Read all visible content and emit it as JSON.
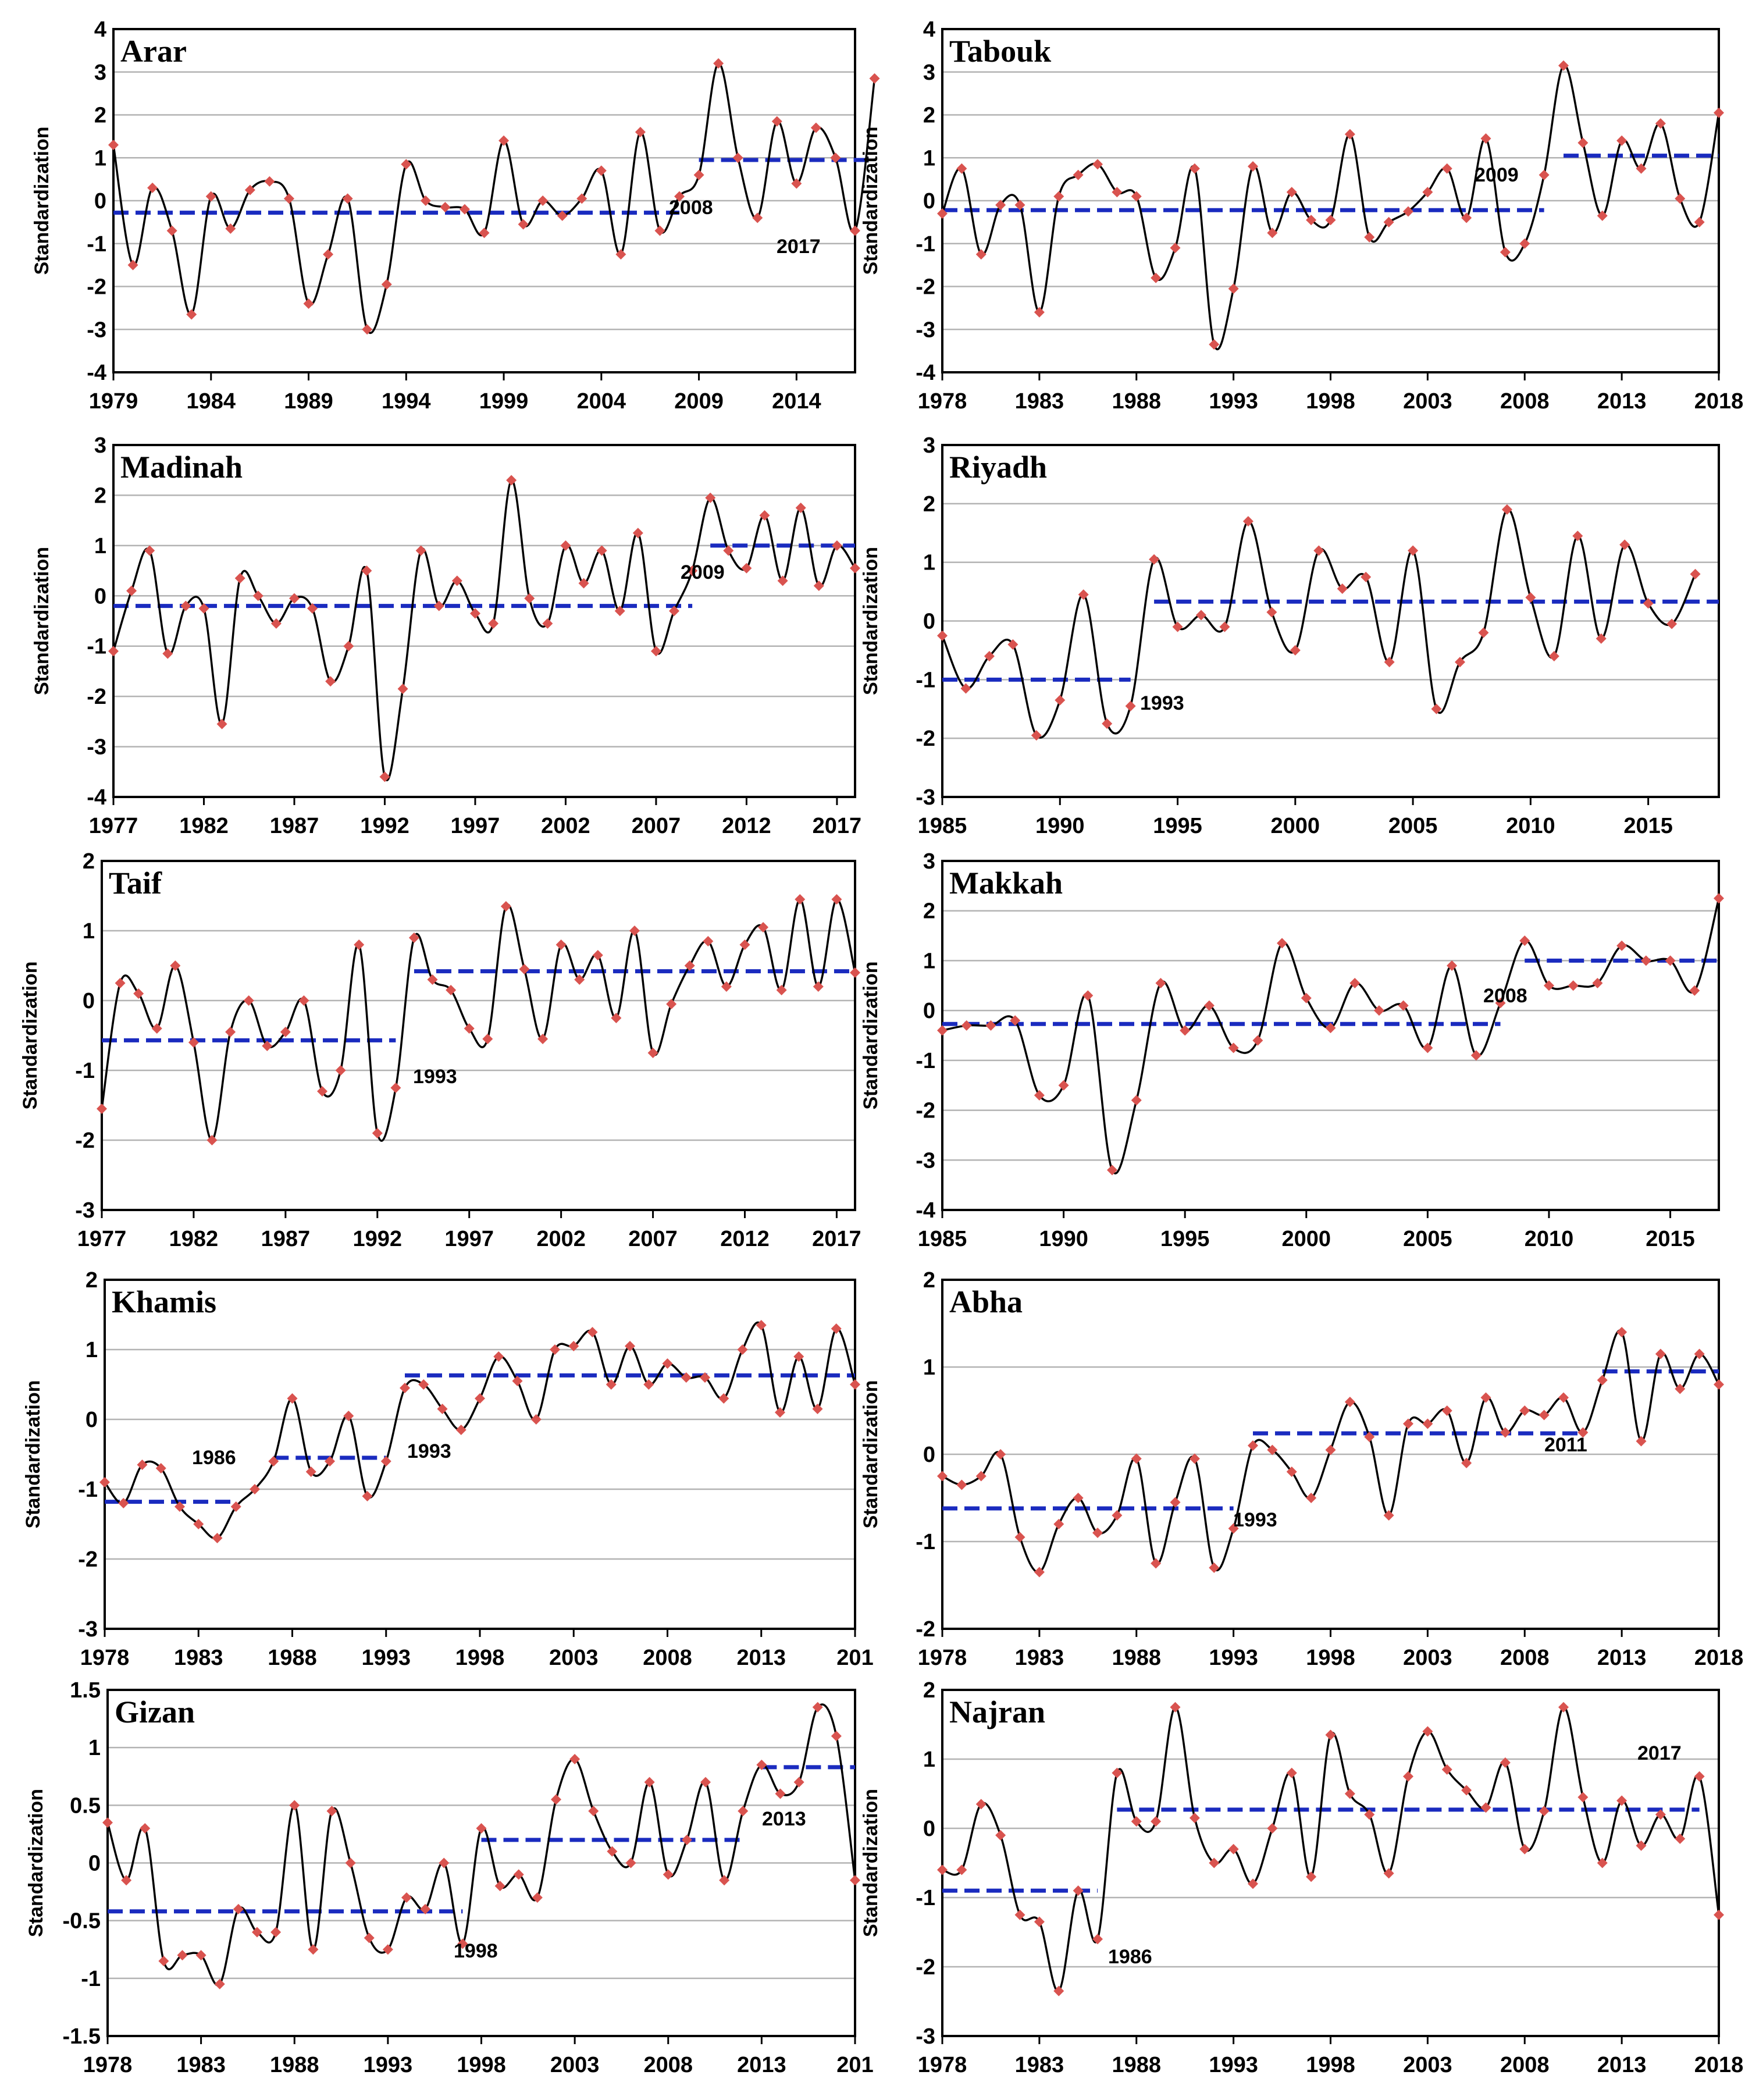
{
  "figure": {
    "y_axis_label": "Standardization",
    "colors": {
      "series": "#000000",
      "marker": "#d9534f",
      "change_line": "#1a2bbf",
      "grid": "#b3b3b3",
      "axis": "#000000"
    }
  },
  "chart_data": [
    {
      "type": "line",
      "title": "Arar",
      "ylabel": "Standardization",
      "start_year": 1979,
      "ylim": [
        -4,
        4
      ],
      "ytick_step": 1,
      "xticks": [
        "1979",
        "1984",
        "1989",
        "1994",
        "1999",
        "2004",
        "2009",
        "2014"
      ],
      "values": [
        1.3,
        -1.5,
        0.3,
        -0.7,
        -2.65,
        0.1,
        -0.65,
        0.25,
        0.45,
        0.05,
        -2.4,
        -1.25,
        0.05,
        -3.0,
        -1.95,
        0.85,
        0.0,
        -0.15,
        -0.2,
        -0.75,
        1.4,
        -0.55,
        0.0,
        -0.35,
        0.05,
        0.7,
        -1.25,
        1.6,
        -0.7,
        0.1,
        0.6,
        3.2,
        1.0,
        -0.4,
        1.85,
        0.4,
        1.7,
        1.0,
        -0.7,
        2.85
      ],
      "segments": [
        {
          "from": 1979,
          "to": 2008,
          "mean": -0.28
        },
        {
          "from": 2009,
          "to": 2018,
          "mean": 0.95
        }
      ],
      "annotations": [
        "2008",
        "2017"
      ]
    },
    {
      "type": "line",
      "title": "Tabouk",
      "ylabel": "Standardization",
      "start_year": 1978,
      "ylim": [
        -4,
        4
      ],
      "ytick_step": 1,
      "xticks": [
        "1978",
        "1983",
        "1988",
        "1993",
        "1998",
        "2003",
        "2008",
        "2013",
        "2018"
      ],
      "values": [
        -0.3,
        0.75,
        -1.25,
        -0.1,
        -0.1,
        -2.6,
        0.1,
        0.6,
        0.85,
        0.2,
        0.1,
        -1.8,
        -1.1,
        0.75,
        -3.35,
        -2.05,
        0.8,
        -0.75,
        0.2,
        -0.45,
        -0.45,
        1.55,
        -0.85,
        -0.5,
        -0.25,
        0.2,
        0.75,
        -0.4,
        1.45,
        -1.2,
        -1.0,
        0.6,
        3.15,
        1.35,
        -0.35,
        1.4,
        0.75,
        1.8,
        0.05,
        -0.5,
        2.05
      ],
      "segments": [
        {
          "from": 1978,
          "to": 2009,
          "mean": -0.22
        },
        {
          "from": 2010,
          "to": 2018,
          "mean": 1.05
        }
      ],
      "annotations": [
        "2009"
      ]
    },
    {
      "type": "line",
      "title": "Madinah",
      "ylabel": "Standardization",
      "start_year": 1977,
      "ylim": [
        -4,
        3
      ],
      "ytick_step": 1,
      "xticks": [
        "1977",
        "1982",
        "1987",
        "1992",
        "1997",
        "2002",
        "2007",
        "2012",
        "2017"
      ],
      "values": [
        -1.1,
        0.1,
        0.9,
        -1.15,
        -0.2,
        -0.25,
        -2.55,
        0.35,
        0.0,
        -0.55,
        -0.05,
        -0.25,
        -1.7,
        -1.0,
        0.5,
        -3.6,
        -1.85,
        0.9,
        -0.2,
        0.3,
        -0.35,
        -0.55,
        2.3,
        -0.05,
        -0.55,
        1.0,
        0.25,
        0.9,
        -0.3,
        1.25,
        -1.1,
        -0.3,
        0.5,
        1.95,
        0.9,
        0.55,
        1.6,
        0.3,
        1.75,
        0.2,
        1.0,
        0.55
      ],
      "segments": [
        {
          "from": 1977,
          "to": 2009,
          "mean": -0.2
        },
        {
          "from": 2010,
          "to": 2018,
          "mean": 1.0
        }
      ],
      "annotations": [
        "2009"
      ]
    },
    {
      "type": "line",
      "title": "Riyadh",
      "ylabel": "Standardization",
      "start_year": 1985,
      "ylim": [
        -3,
        3
      ],
      "ytick_step": 1,
      "xticks": [
        "1985",
        "1990",
        "1995",
        "2000",
        "2005",
        "2010",
        "2015"
      ],
      "values": [
        -0.25,
        -1.15,
        -0.6,
        -0.4,
        -1.95,
        -1.35,
        0.45,
        -1.75,
        -1.45,
        1.05,
        -0.1,
        0.1,
        -0.1,
        1.7,
        0.15,
        -0.5,
        1.2,
        0.55,
        0.75,
        -0.7,
        1.2,
        -1.5,
        -0.7,
        -0.2,
        1.9,
        0.4,
        -0.6,
        1.45,
        -0.3,
        1.3,
        0.3,
        -0.05,
        0.8
      ],
      "segments": [
        {
          "from": 1985,
          "to": 1993,
          "mean": -1.0
        },
        {
          "from": 1994,
          "to": 2018,
          "mean": 0.33
        }
      ],
      "annotations": [
        "1993"
      ]
    },
    {
      "type": "line",
      "title": "Taif",
      "ylabel": "Standardization",
      "start_year": 1977,
      "ylim": [
        -3,
        2
      ],
      "ytick_step": 1,
      "xticks": [
        "1977",
        "1982",
        "1987",
        "1992",
        "1997",
        "2002",
        "2007",
        "2012",
        "2017"
      ],
      "values": [
        -1.55,
        0.25,
        0.1,
        -0.4,
        0.5,
        -0.6,
        -2.0,
        -0.45,
        0.0,
        -0.65,
        -0.45,
        0.0,
        -1.3,
        -1.0,
        0.8,
        -1.9,
        -1.25,
        0.9,
        0.3,
        0.15,
        -0.4,
        -0.55,
        1.35,
        0.45,
        -0.55,
        0.8,
        0.3,
        0.65,
        -0.25,
        1.0,
        -0.75,
        -0.05,
        0.5,
        0.85,
        0.2,
        0.8,
        1.05,
        0.15,
        1.45,
        0.2,
        1.45,
        0.4
      ],
      "segments": [
        {
          "from": 1977,
          "to": 1993,
          "mean": -0.57
        },
        {
          "from": 1994,
          "to": 2018,
          "mean": 0.42
        }
      ],
      "annotations": [
        "1993"
      ]
    },
    {
      "type": "line",
      "title": "Makkah",
      "ylabel": "Standardization",
      "start_year": 1985,
      "ylim": [
        -4,
        3
      ],
      "ytick_step": 1,
      "xticks": [
        "1985",
        "1990",
        "1995",
        "2000",
        "2005",
        "2010",
        "2015"
      ],
      "values": [
        -0.4,
        -0.3,
        -0.3,
        -0.2,
        -1.7,
        -1.5,
        0.3,
        -3.2,
        -1.8,
        0.55,
        -0.4,
        0.1,
        -0.75,
        -0.6,
        1.35,
        0.25,
        -0.35,
        0.55,
        0.0,
        0.1,
        -0.75,
        0.9,
        -0.9,
        0.15,
        1.4,
        0.5,
        0.5,
        0.55,
        1.3,
        1.0,
        1.0,
        0.4,
        2.25
      ],
      "segments": [
        {
          "from": 1985,
          "to": 2008,
          "mean": -0.27
        },
        {
          "from": 2009,
          "to": 2017,
          "mean": 1.0
        }
      ],
      "annotations": [
        "2008"
      ]
    },
    {
      "type": "line",
      "title": "Khamis",
      "ylabel": "Standardization",
      "start_year": 1978,
      "ylim": [
        -3,
        2
      ],
      "ytick_step": 1,
      "xticks": [
        "1978",
        "1983",
        "1988",
        "1993",
        "1998",
        "2003",
        "2008",
        "2013",
        "201"
      ],
      "values": [
        -0.9,
        -1.2,
        -0.65,
        -0.7,
        -1.25,
        -1.5,
        -1.7,
        -1.25,
        -1.0,
        -0.6,
        0.3,
        -0.75,
        -0.6,
        0.05,
        -1.1,
        -0.6,
        0.45,
        0.5,
        0.15,
        -0.15,
        0.3,
        0.9,
        0.55,
        0.0,
        1.0,
        1.05,
        1.25,
        0.5,
        1.05,
        0.5,
        0.8,
        0.6,
        0.6,
        0.3,
        1.0,
        1.35,
        0.1,
        0.9,
        0.15,
        1.3,
        0.5
      ],
      "segments": [
        {
          "from": 1978,
          "to": 1985,
          "mean": -1.18
        },
        {
          "from": 1987,
          "to": 1993,
          "mean": -0.55
        },
        {
          "from": 1994,
          "to": 2018,
          "mean": 0.63
        }
      ],
      "annotations": [
        "1986",
        "1993"
      ]
    },
    {
      "type": "line",
      "title": "Abha",
      "ylabel": "Standardization",
      "start_year": 1978,
      "ylim": [
        -2,
        2
      ],
      "ytick_step": 1,
      "xticks": [
        "1978",
        "1983",
        "1988",
        "1993",
        "1998",
        "2003",
        "2008",
        "2013",
        "2018"
      ],
      "values": [
        -0.25,
        -0.35,
        -0.25,
        0.0,
        -0.95,
        -1.35,
        -0.8,
        -0.5,
        -0.9,
        -0.7,
        -0.05,
        -1.25,
        -0.55,
        -0.05,
        -1.3,
        -0.85,
        0.1,
        0.05,
        -0.2,
        -0.5,
        0.05,
        0.6,
        0.2,
        -0.7,
        0.35,
        0.35,
        0.5,
        -0.1,
        0.65,
        0.25,
        0.5,
        0.45,
        0.65,
        0.25,
        0.85,
        1.4,
        0.15,
        1.15,
        0.75,
        1.15,
        0.8
      ],
      "segments": [
        {
          "from": 1978,
          "to": 1993,
          "mean": -0.62
        },
        {
          "from": 1994,
          "to": 2011,
          "mean": 0.24
        },
        {
          "from": 2012,
          "to": 2018,
          "mean": 0.95
        }
      ],
      "annotations": [
        "1993",
        "2011"
      ]
    },
    {
      "type": "line",
      "title": "Gizan",
      "ylabel": "Standardization",
      "start_year": 1978,
      "ylim": [
        -1.5,
        1.5
      ],
      "ytick_step": 0.5,
      "xticks": [
        "1978",
        "1983",
        "1988",
        "1993",
        "1998",
        "2003",
        "2008",
        "2013",
        "201"
      ],
      "values": [
        0.35,
        -0.15,
        0.3,
        -0.85,
        -0.8,
        -0.8,
        -1.05,
        -0.4,
        -0.6,
        -0.6,
        0.5,
        -0.75,
        0.45,
        0.0,
        -0.65,
        -0.75,
        -0.3,
        -0.4,
        0.0,
        -0.7,
        0.3,
        -0.2,
        -0.1,
        -0.3,
        0.55,
        0.9,
        0.45,
        0.1,
        0.0,
        0.7,
        -0.1,
        0.2,
        0.7,
        -0.15,
        0.45,
        0.85,
        0.6,
        0.7,
        1.35,
        1.1,
        -0.15
      ],
      "segments": [
        {
          "from": 1978,
          "to": 1997,
          "mean": -0.42
        },
        {
          "from": 1998,
          "to": 2012,
          "mean": 0.2
        },
        {
          "from": 2013,
          "to": 2018,
          "mean": 0.83
        }
      ],
      "annotations": [
        "1998",
        "2013"
      ]
    },
    {
      "type": "line",
      "title": "Najran",
      "ylabel": "Standardization",
      "start_year": 1978,
      "ylim": [
        -3,
        2
      ],
      "ytick_step": 1,
      "xticks": [
        "1978",
        "1983",
        "1988",
        "1993",
        "1998",
        "2003",
        "2008",
        "2013",
        "2018"
      ],
      "values": [
        -0.6,
        -0.6,
        0.35,
        -0.1,
        -1.25,
        -1.35,
        -2.35,
        -0.9,
        -1.6,
        0.8,
        0.1,
        0.1,
        1.75,
        0.15,
        -0.5,
        -0.3,
        -0.8,
        0.0,
        0.8,
        -0.7,
        1.35,
        0.5,
        0.2,
        -0.65,
        0.75,
        1.4,
        0.85,
        0.55,
        0.3,
        0.95,
        -0.3,
        0.25,
        1.75,
        0.45,
        -0.5,
        0.4,
        -0.25,
        0.2,
        -0.15,
        0.75,
        -1.25
      ],
      "segments": [
        {
          "from": 1978,
          "to": 1986,
          "mean": -0.9
        },
        {
          "from": 1987,
          "to": 2017,
          "mean": 0.27
        }
      ],
      "annotations": [
        "1986",
        "2017"
      ]
    }
  ]
}
